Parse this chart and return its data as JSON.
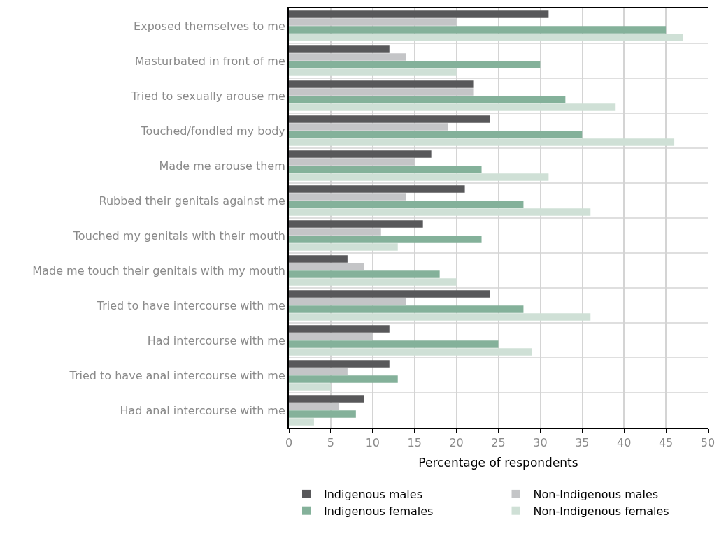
{
  "chart_data": {
    "type": "bar",
    "orientation": "horizontal",
    "xlabel": "Percentage of respondents",
    "categories": [
      "Exposed themselves to me",
      "Masturbated in front of me",
      "Tried to sexually arouse me",
      "Touched/fondled my body",
      "Made me arouse them",
      "Rubbed their genitals against me",
      "Touched my genitals with their mouth",
      "Made me touch their genitals with my mouth",
      "Tried to have intercourse with me",
      "Had intercourse with me",
      "Tried to have anal intercourse with me",
      "Had anal intercourse with me"
    ],
    "series": [
      {
        "name": "Indigenous males",
        "color": "#58585a",
        "values": [
          31,
          12,
          22,
          24,
          17,
          21,
          16,
          7,
          24,
          12,
          12,
          9
        ]
      },
      {
        "name": "Non-Indigenous males",
        "color": "#c4c5c7",
        "values": [
          20,
          14,
          22,
          19,
          15,
          14,
          11,
          9,
          14,
          10,
          7,
          6
        ]
      },
      {
        "name": "Indigenous females",
        "color": "#84b19a",
        "values": [
          45,
          30,
          33,
          35,
          23,
          28,
          23,
          18,
          28,
          25,
          13,
          8
        ]
      },
      {
        "name": "Non-Indigenous females",
        "color": "#cfe0d6",
        "values": [
          47,
          20,
          39,
          46,
          31,
          36,
          13,
          20,
          36,
          29,
          5,
          3
        ]
      }
    ],
    "xlim": [
      0,
      50
    ],
    "xticks": [
      0,
      5,
      10,
      15,
      20,
      25,
      30,
      35,
      40,
      45,
      50
    ],
    "grid": true,
    "legend": "bottom"
  }
}
